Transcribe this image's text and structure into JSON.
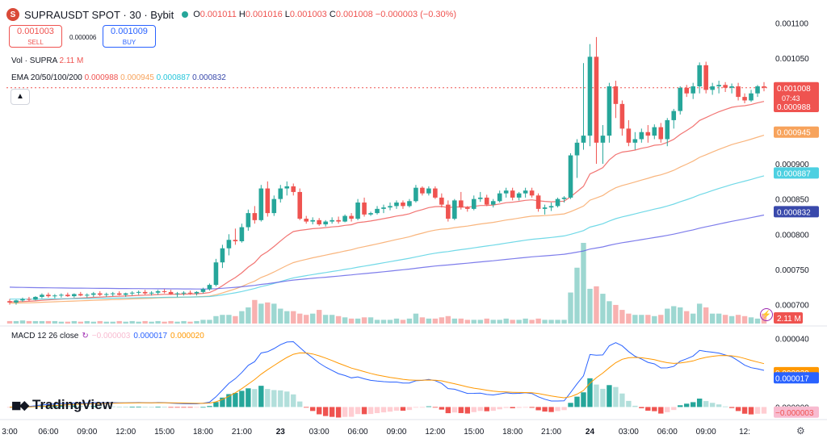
{
  "header": {
    "symbol": "SUPRAUSDT SPOT · 30 · Bybit",
    "logo_letter": "S",
    "ohlc": {
      "o_label": "O",
      "o": "0.001011",
      "h_label": "H",
      "h": "0.001016",
      "l_label": "L",
      "l": "0.001003",
      "c_label": "C",
      "c": "0.001008",
      "change": "−0.000003 (−0.30%)"
    }
  },
  "trade": {
    "sell_price": "0.001003",
    "sell_label": "SELL",
    "spread": "0.000006",
    "buy_price": "0.001009",
    "buy_label": "BUY"
  },
  "legends": {
    "vol_name": "Vol · SUPRA",
    "vol_value": "2.11 M",
    "ema_name": "EMA 20/50/100/200",
    "ema_values": [
      "0.000988",
      "0.000945",
      "0.000887",
      "0.000832"
    ],
    "macd_name": "MACD 12 26 close",
    "macd_values": [
      "−0.000003",
      "0.000017",
      "0.000020"
    ]
  },
  "branding": {
    "logo_text": "TradingView"
  },
  "colors": {
    "up": "#26a69a",
    "down": "#ef5350",
    "ema20": "#ef5350",
    "ema50": "#f7a35c",
    "ema100": "#4dd0e1",
    "ema200": "#5e5ce6",
    "macd_line": "#2962ff",
    "signal_line": "#ff9800"
  },
  "icons": [
    "collapse-icon",
    "bolt-icon",
    "settings-icon",
    "refresh-icon"
  ],
  "chart_data": {
    "type": "candlestick",
    "price_axis": {
      "range": [
        0.000672,
        0.001112
      ],
      "ticks": [
        "0.001100",
        "0.001050",
        "0.000900",
        "0.000850",
        "0.000800",
        "0.000750",
        "0.000700"
      ]
    },
    "price_labels": [
      {
        "value": 0.001008,
        "text": "0.001008",
        "sub": "07:43",
        "color": "#ef5350"
      },
      {
        "value": 0.000988,
        "text": "0.000988",
        "color": "#ef5350"
      },
      {
        "value": 0.000945,
        "text": "0.000945",
        "color": "#f7a35c"
      },
      {
        "value": 0.000887,
        "text": "0.000887",
        "color": "#4dd0e1"
      },
      {
        "value": 0.000832,
        "text": "0.000832",
        "color": "#3949ab"
      }
    ],
    "volume_label": "2.11 M",
    "time_axis": [
      {
        "i": 0,
        "label": "3:00"
      },
      {
        "i": 6,
        "label": "06:00"
      },
      {
        "i": 12,
        "label": "09:00"
      },
      {
        "i": 18,
        "label": "12:00"
      },
      {
        "i": 24,
        "label": "15:00"
      },
      {
        "i": 30,
        "label": "18:00"
      },
      {
        "i": 36,
        "label": "21:00"
      },
      {
        "i": 42,
        "label": "23"
      },
      {
        "i": 48,
        "label": "03:00"
      },
      {
        "i": 54,
        "label": "06:00"
      },
      {
        "i": 60,
        "label": "09:00"
      },
      {
        "i": 66,
        "label": "12:00"
      },
      {
        "i": 72,
        "label": "15:00"
      },
      {
        "i": 78,
        "label": "18:00"
      },
      {
        "i": 84,
        "label": "21:00"
      },
      {
        "i": 90,
        "label": "24"
      },
      {
        "i": 96,
        "label": "03:00"
      },
      {
        "i": 102,
        "label": "06:00"
      },
      {
        "i": 108,
        "label": "09:00"
      },
      {
        "i": 114,
        "label": "12:"
      }
    ],
    "candles": [
      [
        0.000705,
        0.000708,
        0.0007,
        0.000703
      ],
      [
        0.000703,
        0.000707,
        0.0007,
        0.000706
      ],
      [
        0.000706,
        0.00071,
        0.000704,
        0.000708
      ],
      [
        0.000708,
        0.000711,
        0.000705,
        0.000707
      ],
      [
        0.000707,
        0.000712,
        0.000706,
        0.000711
      ],
      [
        0.000711,
        0.000716,
        0.000709,
        0.000714
      ],
      [
        0.000714,
        0.000717,
        0.00071,
        0.000712
      ],
      [
        0.000712,
        0.000715,
        0.000709,
        0.000713
      ],
      [
        0.000713,
        0.000716,
        0.00071,
        0.000714
      ],
      [
        0.000714,
        0.000717,
        0.000711,
        0.000712
      ],
      [
        0.000712,
        0.000716,
        0.00071,
        0.000715
      ],
      [
        0.000715,
        0.000718,
        0.000712,
        0.000713
      ],
      [
        0.000713,
        0.000716,
        0.00071,
        0.000714
      ],
      [
        0.000714,
        0.000718,
        0.000711,
        0.000716
      ],
      [
        0.000716,
        0.000719,
        0.000712,
        0.000714
      ],
      [
        0.000714,
        0.000717,
        0.000711,
        0.000715
      ],
      [
        0.000715,
        0.000718,
        0.000712,
        0.000716
      ],
      [
        0.000716,
        0.000719,
        0.000713,
        0.000714
      ],
      [
        0.000714,
        0.000717,
        0.000711,
        0.000716
      ],
      [
        0.000716,
        0.000719,
        0.000713,
        0.000717
      ],
      [
        0.000717,
        0.00072,
        0.000714,
        0.000718
      ],
      [
        0.000718,
        0.000721,
        0.000714,
        0.000716
      ],
      [
        0.000716,
        0.000719,
        0.000713,
        0.000717
      ],
      [
        0.000717,
        0.000721,
        0.000714,
        0.000719
      ],
      [
        0.000719,
        0.000722,
        0.000716,
        0.000718
      ],
      [
        0.000718,
        0.000721,
        0.000714,
        0.000715
      ],
      [
        0.000715,
        0.000718,
        0.000711,
        0.000716
      ],
      [
        0.000716,
        0.000719,
        0.000713,
        0.000717
      ],
      [
        0.000717,
        0.00072,
        0.000714,
        0.000716
      ],
      [
        0.000716,
        0.000719,
        0.000713,
        0.000718
      ],
      [
        0.000718,
        0.000724,
        0.000716,
        0.000722
      ],
      [
        0.000722,
        0.00073,
        0.00072,
        0.000728
      ],
      [
        0.000728,
        0.000765,
        0.000726,
        0.00076
      ],
      [
        0.00076,
        0.000785,
        0.000752,
        0.00078
      ],
      [
        0.00078,
        0.0008,
        0.00077,
        0.000792
      ],
      [
        0.000792,
        0.000808,
        0.000785,
        0.00079
      ],
      [
        0.00079,
        0.000815,
        0.000788,
        0.00081
      ],
      [
        0.00081,
        0.000835,
        0.000805,
        0.00083
      ],
      [
        0.00083,
        0.00084,
        0.000815,
        0.00082
      ],
      [
        0.00082,
        0.00087,
        0.000818,
        0.000865
      ],
      [
        0.000865,
        0.000875,
        0.000825,
        0.00083
      ],
      [
        0.00083,
        0.000855,
        0.000826,
        0.00085
      ],
      [
        0.00085,
        0.00087,
        0.000845,
        0.000865
      ],
      [
        0.000865,
        0.000875,
        0.000855,
        0.000868
      ],
      [
        0.000868,
        0.000872,
        0.000855,
        0.00086
      ],
      [
        0.00086,
        0.000865,
        0.00082,
        0.000822
      ],
      [
        0.000822,
        0.000826,
        0.000815,
        0.000818
      ],
      [
        0.000818,
        0.000824,
        0.000814,
        0.00082
      ],
      [
        0.00082,
        0.000823,
        0.000812,
        0.000814
      ],
      [
        0.000814,
        0.00082,
        0.000811,
        0.000818
      ],
      [
        0.000818,
        0.000824,
        0.000815,
        0.00082
      ],
      [
        0.00082,
        0.000825,
        0.000815,
        0.000818
      ],
      [
        0.000818,
        0.000828,
        0.000817,
        0.000826
      ],
      [
        0.000826,
        0.00083,
        0.000818,
        0.000822
      ],
      [
        0.000822,
        0.00085,
        0.00082,
        0.000845
      ],
      [
        0.000845,
        0.000852,
        0.000825,
        0.000828
      ],
      [
        0.000828,
        0.000832,
        0.000826,
        0.00083
      ],
      [
        0.00083,
        0.00084,
        0.000828,
        0.000836
      ],
      [
        0.000836,
        0.000842,
        0.00083,
        0.000838
      ],
      [
        0.000838,
        0.000845,
        0.000834,
        0.00084
      ],
      [
        0.00084,
        0.000848,
        0.000836,
        0.000845
      ],
      [
        0.000845,
        0.000848,
        0.000836,
        0.00084
      ],
      [
        0.00084,
        0.00085,
        0.000838,
        0.000847
      ],
      [
        0.000847,
        0.00087,
        0.000845,
        0.000866
      ],
      [
        0.000866,
        0.000868,
        0.000855,
        0.000858
      ],
      [
        0.000858,
        0.000868,
        0.000855,
        0.000865
      ],
      [
        0.000865,
        0.000868,
        0.00085,
        0.000852
      ],
      [
        0.000852,
        0.000858,
        0.000838,
        0.000842
      ],
      [
        0.000842,
        0.000848,
        0.000818,
        0.000822
      ],
      [
        0.000822,
        0.00085,
        0.00082,
        0.000848
      ],
      [
        0.000848,
        0.00086,
        0.000835,
        0.000838
      ],
      [
        0.000838,
        0.00084,
        0.000832,
        0.000836
      ],
      [
        0.000836,
        0.000855,
        0.000834,
        0.00085
      ],
      [
        0.00085,
        0.00086,
        0.000846,
        0.000852
      ],
      [
        0.000852,
        0.000856,
        0.00084,
        0.000842
      ],
      [
        0.000842,
        0.00085,
        0.000838,
        0.000847
      ],
      [
        0.000847,
        0.000862,
        0.000845,
        0.000858
      ],
      [
        0.000858,
        0.000866,
        0.000852,
        0.000862
      ],
      [
        0.000862,
        0.000866,
        0.000848,
        0.000852
      ],
      [
        0.000852,
        0.00086,
        0.000848,
        0.000858
      ],
      [
        0.000858,
        0.000866,
        0.000852,
        0.000862
      ],
      [
        0.000862,
        0.000866,
        0.000852,
        0.000855
      ],
      [
        0.000855,
        0.000858,
        0.000832,
        0.000836
      ],
      [
        0.000836,
        0.000842,
        0.000828,
        0.000838
      ],
      [
        0.000838,
        0.000845,
        0.000833,
        0.00084
      ],
      [
        0.00084,
        0.000852,
        0.000838,
        0.00085
      ],
      [
        0.00085,
        0.000854,
        0.000845,
        0.000852
      ],
      [
        0.000852,
        0.000915,
        0.00085,
        0.000912
      ],
      [
        0.000912,
        0.000935,
        0.00088,
        0.00093
      ],
      [
        0.00093,
        0.001043,
        0.00092,
        0.00094
      ],
      [
        0.00094,
        0.00107,
        0.000925,
        0.001052
      ],
      [
        0.001052,
        0.00108,
        0.0009,
        0.00093
      ],
      [
        0.00093,
        0.000955,
        0.0009,
        0.00094
      ],
      [
        0.00094,
        0.001015,
        0.00093,
        0.00101
      ],
      [
        0.00101,
        0.001018,
        0.000965,
        0.000985
      ],
      [
        0.000985,
        0.00099,
        0.00094,
        0.00095
      ],
      [
        0.00095,
        0.000962,
        0.000925,
        0.00093
      ],
      [
        0.00093,
        0.000945,
        0.00092,
        0.000935
      ],
      [
        0.000935,
        0.00095,
        0.00093,
        0.000945
      ],
      [
        0.000945,
        0.000955,
        0.00093,
        0.00094
      ],
      [
        0.00094,
        0.000956,
        0.000935,
        0.000952
      ],
      [
        0.000952,
        0.000958,
        0.00093,
        0.000935
      ],
      [
        0.000935,
        0.000965,
        0.000925,
        0.000962
      ],
      [
        0.000962,
        0.000978,
        0.00095,
        0.000975
      ],
      [
        0.000975,
        0.00101,
        0.00097,
        0.001008
      ],
      [
        0.001008,
        0.001012,
        0.000995,
        0.001
      ],
      [
        0.001,
        0.001015,
        0.000992,
        0.00101
      ],
      [
        0.00101,
        0.001044,
        0.001,
        0.00104
      ],
      [
        0.00104,
        0.001045,
        0.001,
        0.001005
      ],
      [
        0.001005,
        0.001015,
        0.000998,
        0.00101
      ],
      [
        0.00101,
        0.001018,
        0.001,
        0.001012
      ],
      [
        0.001012,
        0.001016,
        0.001002,
        0.001008
      ],
      [
        0.001008,
        0.001014,
        0.001,
        0.00101
      ],
      [
        0.00101,
        0.001015,
        0.00099,
        0.000995
      ],
      [
        0.000995,
        0.001,
        0.000986,
        0.00099
      ],
      [
        0.00099,
        0.001005,
        0.000988,
        0.001
      ],
      [
        0.001,
        0.001012,
        0.000995,
        0.00101
      ],
      [
        0.00101,
        0.001016,
        0.001003,
        0.001008
      ]
    ],
    "volumes": [
      0.2,
      0.2,
      0.25,
      0.2,
      0.2,
      0.2,
      0.2,
      0.2,
      0.15,
      0.15,
      0.2,
      0.15,
      0.2,
      0.15,
      0.2,
      0.15,
      0.15,
      0.2,
      0.15,
      0.2,
      0.15,
      0.2,
      0.15,
      0.2,
      0.15,
      0.2,
      0.15,
      0.2,
      0.15,
      0.2,
      0.3,
      0.3,
      0.6,
      0.7,
      0.7,
      0.6,
      1.0,
      1.3,
      1.9,
      1.6,
      1.7,
      1.6,
      1.2,
      1.0,
      1.0,
      0.8,
      0.7,
      0.8,
      1.1,
      0.7,
      0.7,
      0.6,
      0.5,
      0.4,
      0.4,
      0.5,
      0.5,
      0.3,
      0.3,
      0.3,
      0.4,
      0.3,
      0.4,
      0.8,
      0.5,
      0.4,
      0.4,
      0.5,
      0.6,
      0.4,
      0.4,
      0.3,
      0.3,
      0.3,
      0.4,
      0.3,
      0.3,
      0.4,
      0.3,
      0.3,
      0.4,
      0.3,
      0.4,
      0.3,
      0.3,
      0.3,
      0.3,
      2.5,
      4.5,
      6.5,
      2.8,
      3.0,
      2.4,
      1.8,
      1.5,
      1.1,
      0.8,
      0.7,
      0.7,
      0.7,
      0.6,
      0.7,
      1.2,
      1.4,
      1.3,
      1.0,
      0.8,
      1.6,
      1.3,
      0.8,
      0.8,
      0.7,
      0.6,
      0.7,
      0.6,
      0.5,
      0.4,
      0.8
    ],
    "macd_axis": {
      "range": [
        -4.5e-06,
        4.25e-05
      ],
      "ticks": [
        "0.000040",
        "0.000000"
      ]
    },
    "macd_labels": [
      {
        "value": 2e-05,
        "text": "0.000020",
        "color": "#ff9800"
      },
      {
        "value": 1.7e-05,
        "text": "0.000017",
        "color": "#2962ff"
      },
      {
        "value": -3e-06,
        "text": "−0.000003",
        "color": "#f8bbd0",
        "textcolor": "#ef5350"
      }
    ]
  }
}
